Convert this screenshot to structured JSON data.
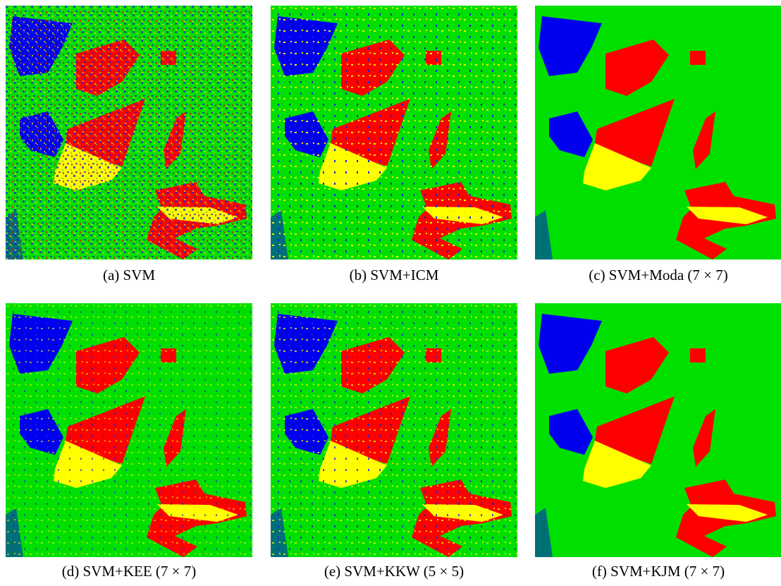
{
  "figure": {
    "panels": [
      {
        "caption": "(a)  SVM"
      },
      {
        "caption": "(b)  SVM+ICM"
      },
      {
        "caption": "(c)  SVM+Moda (7 × 7)"
      },
      {
        "caption": "(d)  SVM+KEE (7 × 7)"
      },
      {
        "caption": "(e)  SVM+KKW (5 × 5)"
      },
      {
        "caption": "(f)  SVM+KJM (7 × 7)"
      }
    ]
  }
}
